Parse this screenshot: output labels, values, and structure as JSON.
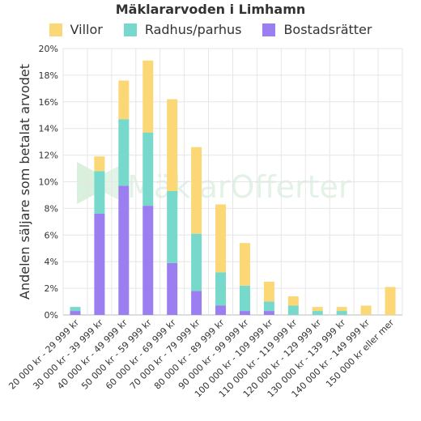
{
  "chart_data": {
    "type": "bar",
    "stacked": true,
    "title": "Mäklararvoden i Limhamn",
    "ylabel": "Andelen säljare som betalat arvodet",
    "xlabel": "",
    "ylim": [
      0,
      20
    ],
    "y_ticks": [
      "0%",
      "2%",
      "4%",
      "6%",
      "8%",
      "10%",
      "12%",
      "14%",
      "16%",
      "18%",
      "20%"
    ],
    "grid": true,
    "legend_position": "top",
    "watermark": "MäklarOfferter",
    "categories": [
      "20 000 kr - 29 999 kr",
      "30 000 kr - 39 999 kr",
      "40 000 kr - 49 999 kr",
      "50 000 kr - 59 999 kr",
      "60 000 kr - 69 999 kr",
      "70 000 kr - 79 999 kr",
      "80 000 kr - 89 999 kr",
      "90 000 kr - 99 999 kr",
      "100 000 kr - 109 999 kr",
      "110 000 kr - 119 999 kr",
      "120 000 kr - 129 999 kr",
      "130 000 kr - 139 999 kr",
      "140 000 kr - 149 999 kr",
      "150 000 kr eller mer"
    ],
    "series": [
      {
        "name": "Bostadsrätter",
        "color": "#9b7ff0",
        "values": [
          0.3,
          7.6,
          9.7,
          8.2,
          3.9,
          1.8,
          0.7,
          0.3,
          0.3,
          0,
          0,
          0,
          0,
          0
        ]
      },
      {
        "name": "Radhus/parhus",
        "color": "#77d8cc",
        "values": [
          0.3,
          3.2,
          5.0,
          5.5,
          5.4,
          4.3,
          2.5,
          1.9,
          0.7,
          0.7,
          0.3,
          0.3,
          0,
          0
        ]
      },
      {
        "name": "Villor",
        "color": "#fbd775",
        "values": [
          0,
          1.1,
          2.9,
          5.4,
          6.9,
          6.5,
          5.1,
          3.2,
          1.5,
          0.7,
          0.3,
          0.3,
          0.7,
          2.1
        ]
      }
    ],
    "legend_order": [
      "Villor",
      "Radhus/parhus",
      "Bostadsrätter"
    ]
  }
}
